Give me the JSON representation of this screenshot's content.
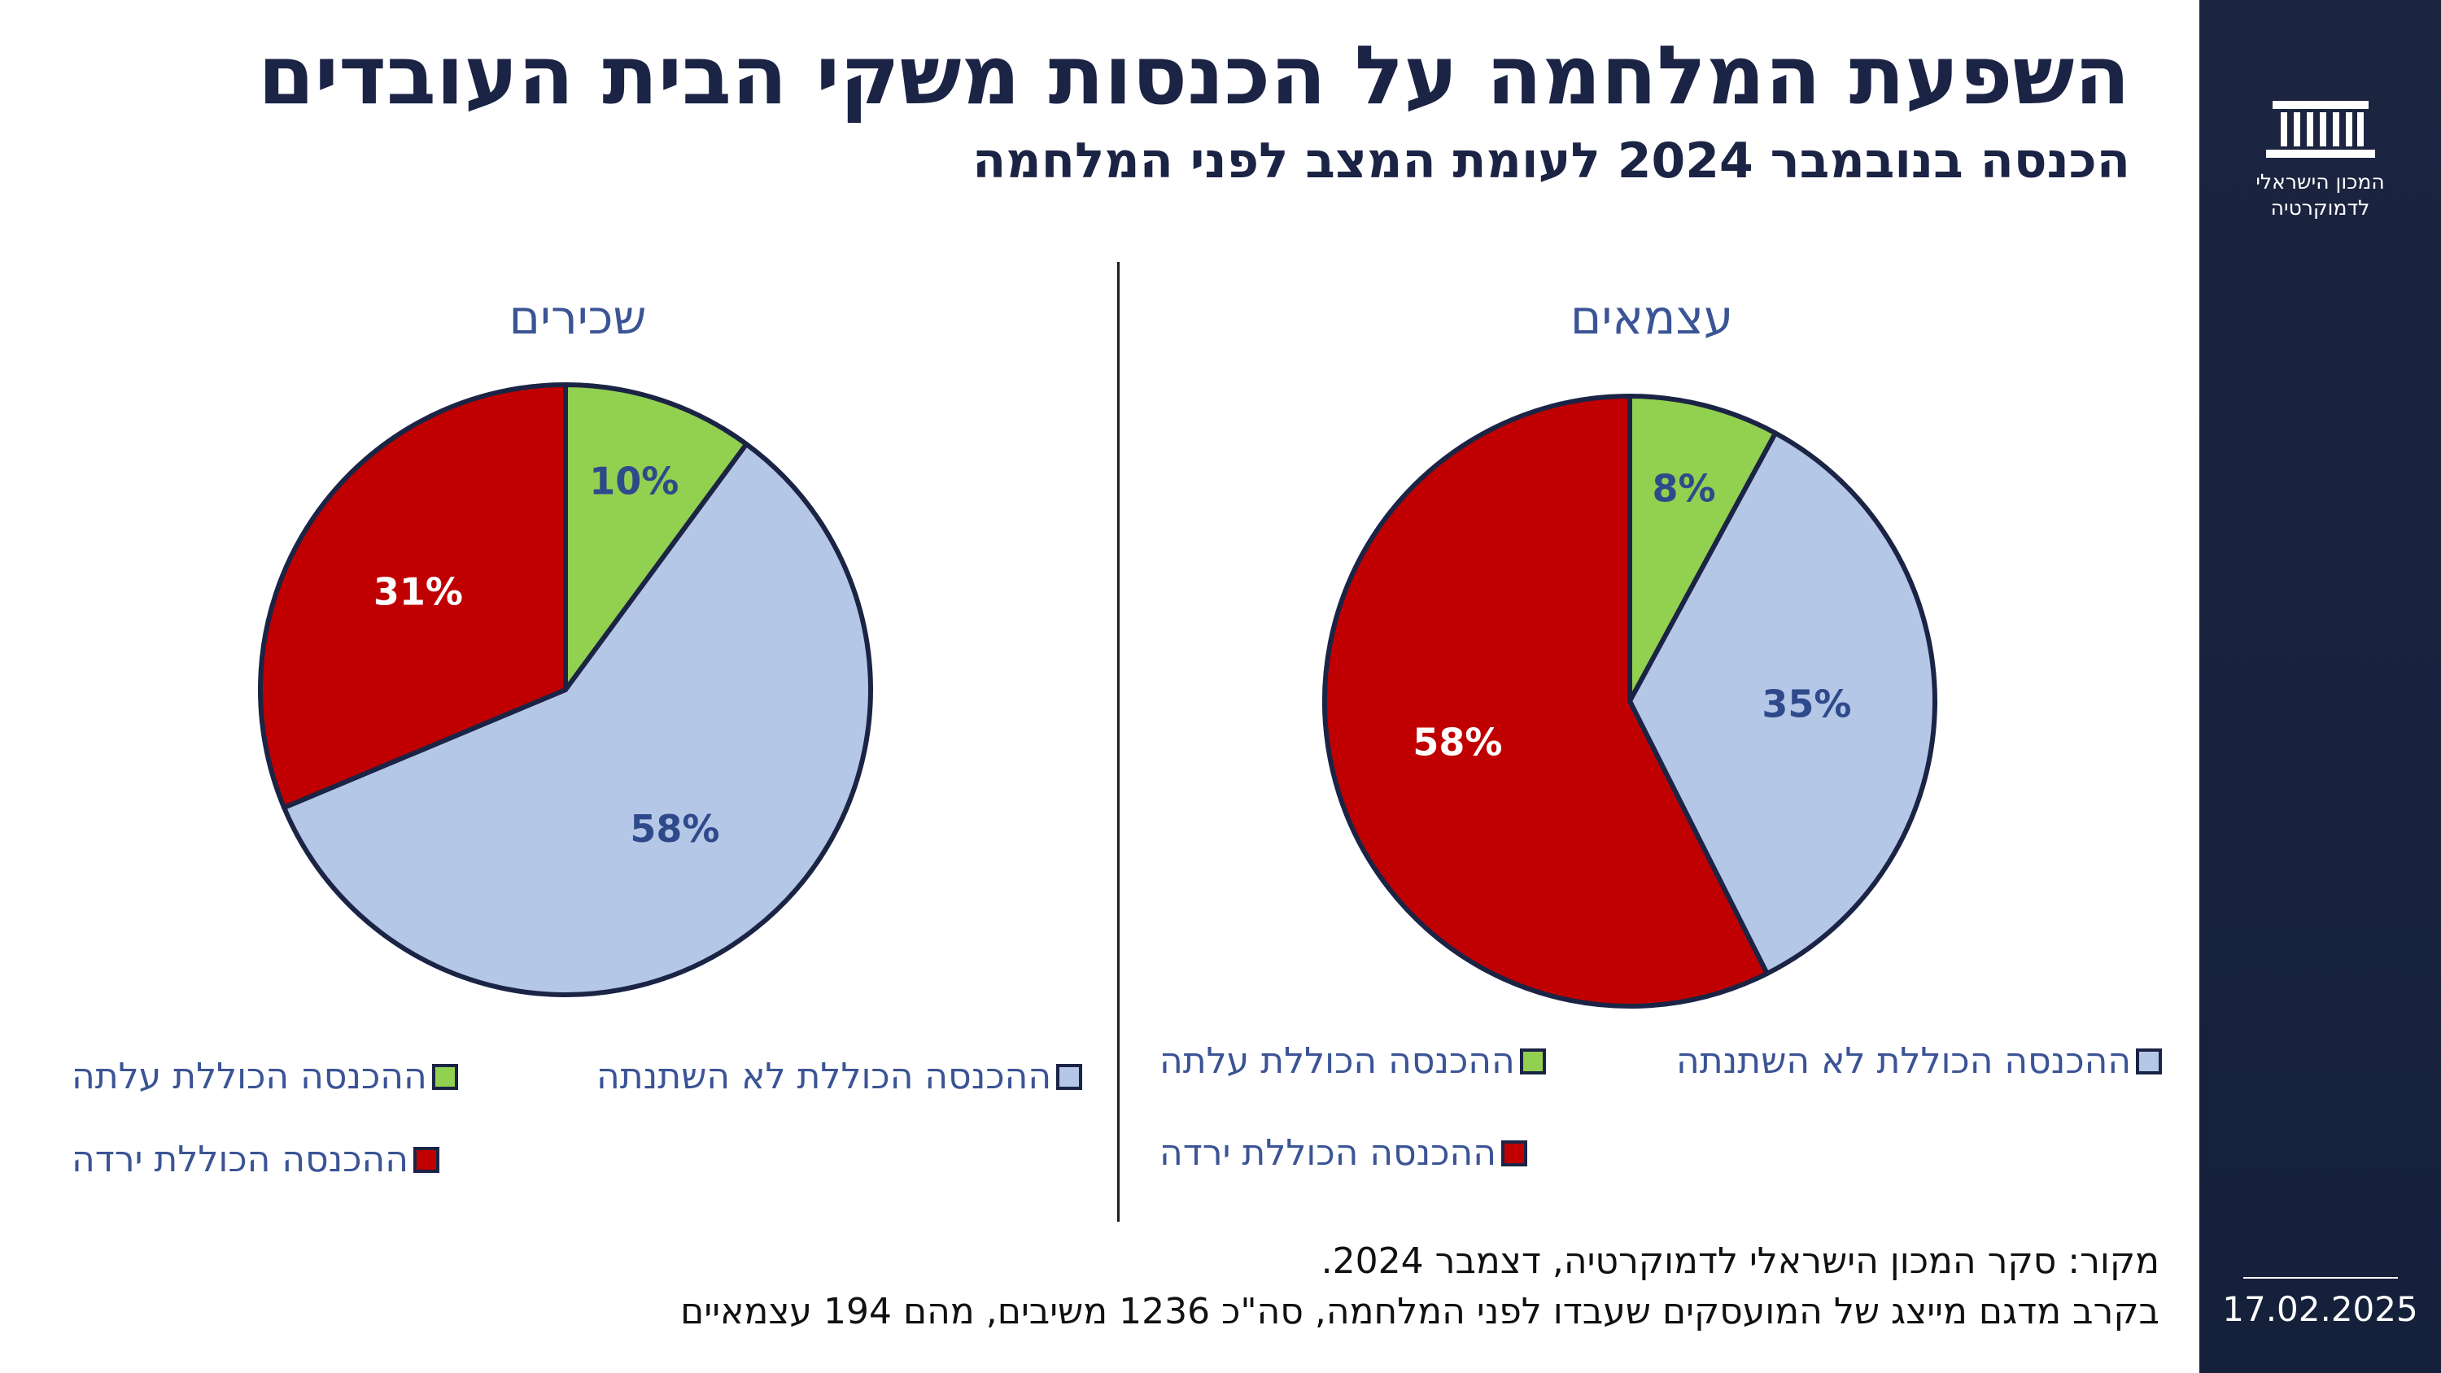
{
  "header": {
    "title": "השפעת המלחמה על הכנסות משקי הבית העובדים",
    "subtitle": "הכנסה בנובמבר 2024 לעומת המצב לפני המלחמה"
  },
  "sidebar": {
    "logo_line1": "המכון הישראלי",
    "logo_line2": "לדמוקרטיה",
    "date": "17.02.2025"
  },
  "colors": {
    "increased": "#92d050",
    "unchanged": "#b4c7e7",
    "decreased": "#c00000",
    "outline": "#1b2445",
    "label_dark": "#2f4a8a"
  },
  "chart_data": [
    {
      "type": "pie",
      "title": "שכירים",
      "slices": [
        {
          "label": "ההכנסה הכוללת עלתה",
          "value": 10,
          "text": "10%",
          "color": "#92d050"
        },
        {
          "label": "ההכנסה הכוללת לא השתנתה",
          "value": 58,
          "text": "58%",
          "color": "#b4c7e7"
        },
        {
          "label": "ההכנסה הכוללת ירדה",
          "value": 31,
          "text": "31%",
          "color": "#c00000"
        }
      ]
    },
    {
      "type": "pie",
      "title": "עצמאים",
      "slices": [
        {
          "label": "ההכנסה הכוללת עלתה",
          "value": 8,
          "text": "8%",
          "color": "#92d050"
        },
        {
          "label": "ההכנסה הכוללת לא השתנתה",
          "value": 35,
          "text": "35%",
          "color": "#b4c7e7"
        },
        {
          "label": "ההכנסה הכוללת ירדה",
          "value": 58,
          "text": "58%",
          "color": "#c00000"
        }
      ]
    }
  ],
  "source": {
    "line1": "מקור: סקר המכון הישראלי לדמוקרטיה, דצמבר 2024.",
    "line2": "בקרב מדגם מייצג של המועסקים שעבדו לפני המלחמה, סה\"כ 1236 משיבים, מהם 194 עצמאיים"
  }
}
